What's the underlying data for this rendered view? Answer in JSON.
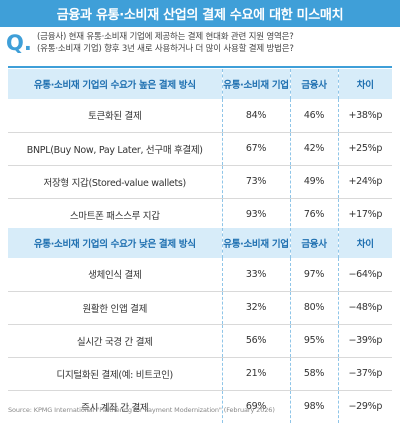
{
  "title": "금융과 유통·소비재 산업의 결제 수요에 대한 미스매치",
  "question": {
    "mark": "Q.",
    "line1": "(금융사) 현재 유통·소비재 기업에 제공하는 결제 현대화 관련 지원 영역은?",
    "line2": "(유통·소비재 기업) 향후 3년 새로 사용하거나 더 많이 사용할 결제 방법은?"
  },
  "high_table": {
    "headers": [
      "유통·소비재 기업의 수요가 높은 결제 방식",
      "유통·소비재 기업",
      "금융사",
      "차이"
    ],
    "rows": [
      [
        "토큰화된 결제",
        "84%",
        "46%",
        "+38%p"
      ],
      [
        "BNPL(Buy Now, Pay Later, 선구매 후결제)",
        "67%",
        "42%",
        "+25%p"
      ],
      [
        "저장형 지갑(Stored-value wallets)",
        "73%",
        "49%",
        "+24%p"
      ],
      [
        "스마트폰 패스스루 지갑",
        "93%",
        "76%",
        "+17%p"
      ]
    ]
  },
  "low_table": {
    "headers": [
      "유통·소비재 기업의 수요가 낮은 결제 방식",
      "유통·소비재 기업",
      "금융사",
      "차이"
    ],
    "rows": [
      [
        "생체인식 결제",
        "33%",
        "97%",
        "−64%p"
      ],
      [
        "원활한 인앱 결제",
        "32%",
        "80%",
        "−48%p"
      ],
      [
        "실시간 국경 간 결제",
        "56%",
        "95%",
        "−39%p"
      ],
      [
        "디지털화된 결제(예: 비트코인)",
        "21%",
        "58%",
        "−37%p"
      ],
      [
        "즉시 계좌 간 결제",
        "69%",
        "98%",
        "−29%p"
      ]
    ]
  },
  "source": "Source: KPMG International \"Partnering for Payment Modernization\" (February 2026)",
  "colors": {
    "accent": "#3f9fd8",
    "header_bg": "#d7ecf9",
    "header_text": "#1e6fb0"
  }
}
